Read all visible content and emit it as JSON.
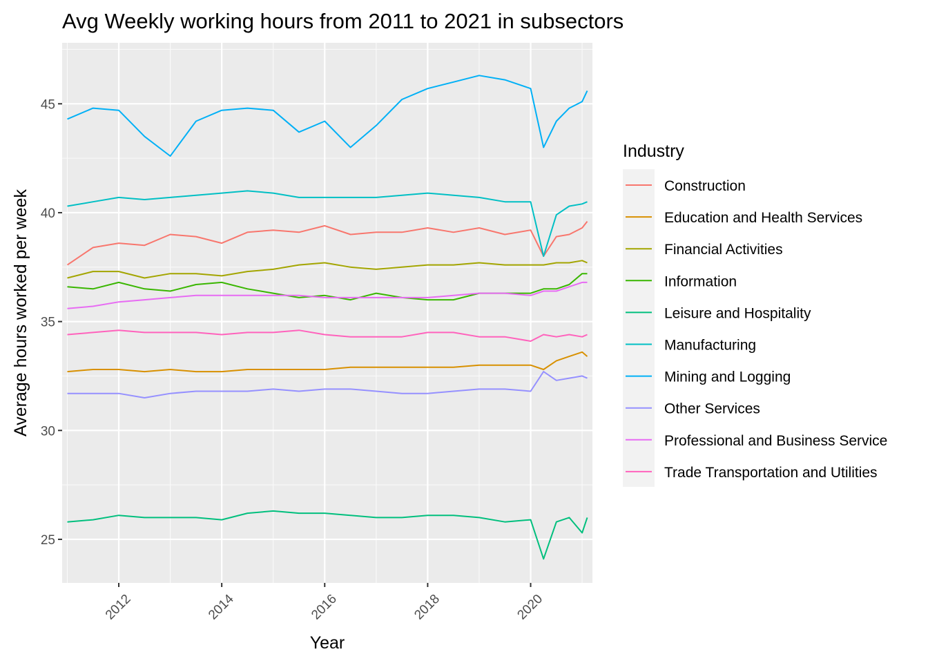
{
  "chart_data": {
    "type": "line",
    "title": "Avg Weekly working hours from 2011 to 2021 in subsectors",
    "xlabel": "Year",
    "ylabel": "Average hours worked per week",
    "x_ticks": [
      "2012",
      "2014",
      "2016",
      "2018",
      "2020"
    ],
    "y_ticks": [
      "25",
      "30",
      "35",
      "40",
      "45"
    ],
    "xlim": [
      2010.9,
      2021.2
    ],
    "ylim": [
      23.0,
      47.8
    ],
    "grid": true,
    "legend": {
      "title": "Industry",
      "placement": "right"
    },
    "x": [
      2011.0,
      2011.5,
      2012.0,
      2012.5,
      2013.0,
      2013.5,
      2014.0,
      2014.5,
      2015.0,
      2015.5,
      2016.0,
      2016.5,
      2017.0,
      2017.5,
      2018.0,
      2018.5,
      2019.0,
      2019.5,
      2020.0,
      2020.25,
      2020.5,
      2020.75,
      2021.0,
      2021.1
    ],
    "series": [
      {
        "name": "Construction",
        "color": "#F8766D",
        "values": [
          37.6,
          38.4,
          38.6,
          38.5,
          39.0,
          38.9,
          38.6,
          39.1,
          39.2,
          39.1,
          39.4,
          39.0,
          39.1,
          39.1,
          39.3,
          39.1,
          39.3,
          39.0,
          39.2,
          38.0,
          38.9,
          39.0,
          39.3,
          39.6
        ]
      },
      {
        "name": "Education and Health Services",
        "color": "#D89000",
        "values": [
          32.7,
          32.8,
          32.8,
          32.7,
          32.8,
          32.7,
          32.7,
          32.8,
          32.8,
          32.8,
          32.8,
          32.9,
          32.9,
          32.9,
          32.9,
          32.9,
          33.0,
          33.0,
          33.0,
          32.8,
          33.2,
          33.4,
          33.6,
          33.4
        ]
      },
      {
        "name": "Financial Activities",
        "color": "#A3A500",
        "values": [
          37.0,
          37.3,
          37.3,
          37.0,
          37.2,
          37.2,
          37.1,
          37.3,
          37.4,
          37.6,
          37.7,
          37.5,
          37.4,
          37.5,
          37.6,
          37.6,
          37.7,
          37.6,
          37.6,
          37.6,
          37.7,
          37.7,
          37.8,
          37.7
        ]
      },
      {
        "name": "Information",
        "color": "#39B600",
        "values": [
          36.6,
          36.5,
          36.8,
          36.5,
          36.4,
          36.7,
          36.8,
          36.5,
          36.3,
          36.1,
          36.2,
          36.0,
          36.3,
          36.1,
          36.0,
          36.0,
          36.3,
          36.3,
          36.3,
          36.5,
          36.5,
          36.7,
          37.2,
          37.2
        ]
      },
      {
        "name": "Leisure and Hospitality",
        "color": "#00BF7D",
        "values": [
          25.8,
          25.9,
          26.1,
          26.0,
          26.0,
          26.0,
          25.9,
          26.2,
          26.3,
          26.2,
          26.2,
          26.1,
          26.0,
          26.0,
          26.1,
          26.1,
          26.0,
          25.8,
          25.9,
          24.1,
          25.8,
          26.0,
          25.3,
          26.0
        ]
      },
      {
        "name": "Manufacturing",
        "color": "#00BFC4",
        "values": [
          40.3,
          40.5,
          40.7,
          40.6,
          40.7,
          40.8,
          40.9,
          41.0,
          40.9,
          40.7,
          40.7,
          40.7,
          40.7,
          40.8,
          40.9,
          40.8,
          40.7,
          40.5,
          40.5,
          38.0,
          39.9,
          40.3,
          40.4,
          40.5
        ]
      },
      {
        "name": "Mining and Logging",
        "color": "#00B0F6",
        "values": [
          44.3,
          44.8,
          44.7,
          43.5,
          42.6,
          44.2,
          44.7,
          44.8,
          44.7,
          43.7,
          44.2,
          43.0,
          44.0,
          45.2,
          45.7,
          46.0,
          46.3,
          46.1,
          45.7,
          43.0,
          44.2,
          44.8,
          45.1,
          45.6
        ]
      },
      {
        "name": "Other Services",
        "color": "#9590FF",
        "values": [
          31.7,
          31.7,
          31.7,
          31.5,
          31.7,
          31.8,
          31.8,
          31.8,
          31.9,
          31.8,
          31.9,
          31.9,
          31.8,
          31.7,
          31.7,
          31.8,
          31.9,
          31.9,
          31.8,
          32.7,
          32.3,
          32.4,
          32.5,
          32.4
        ]
      },
      {
        "name": "Professional and Business Service",
        "color": "#E76BF3",
        "values": [
          35.6,
          35.7,
          35.9,
          36.0,
          36.1,
          36.2,
          36.2,
          36.2,
          36.2,
          36.2,
          36.1,
          36.1,
          36.1,
          36.1,
          36.1,
          36.2,
          36.3,
          36.3,
          36.2,
          36.4,
          36.4,
          36.6,
          36.8,
          36.8
        ]
      },
      {
        "name": "Trade Transportation and Utilities",
        "color": "#FF62BC",
        "values": [
          34.4,
          34.5,
          34.6,
          34.5,
          34.5,
          34.5,
          34.4,
          34.5,
          34.5,
          34.6,
          34.4,
          34.3,
          34.3,
          34.3,
          34.5,
          34.5,
          34.3,
          34.3,
          34.1,
          34.4,
          34.3,
          34.4,
          34.3,
          34.4
        ]
      }
    ]
  }
}
